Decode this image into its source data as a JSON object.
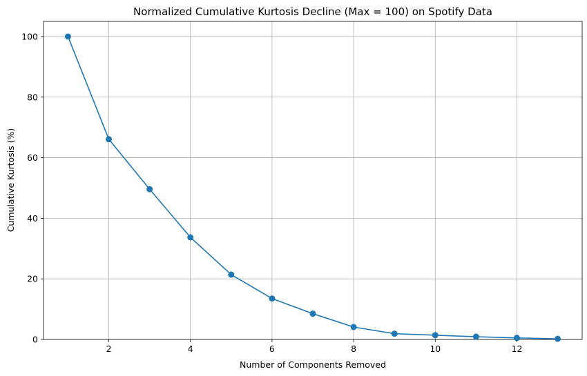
{
  "chart_data": {
    "type": "line",
    "title": "Normalized Cumulative Kurtosis Decline (Max = 100) on Spotify Data",
    "xlabel": "Number of Components Removed",
    "ylabel": "Cumulative Kurtosis (%)",
    "xlim": [
      0.4,
      13.6
    ],
    "ylim": [
      0,
      105
    ],
    "xticks": [
      2,
      4,
      6,
      8,
      10,
      12
    ],
    "yticks": [
      0,
      20,
      40,
      60,
      80,
      100
    ],
    "grid": true,
    "series": [
      {
        "color": "#1f77b4",
        "marker": "circle",
        "x": [
          1,
          2,
          3,
          4,
          5,
          6,
          7,
          8,
          9,
          10,
          11,
          12,
          13
        ],
        "y": [
          100,
          66.1,
          49.6,
          33.7,
          21.4,
          13.5,
          8.5,
          4.1,
          1.9,
          1.4,
          0.9,
          0.5,
          0.2
        ]
      }
    ]
  }
}
